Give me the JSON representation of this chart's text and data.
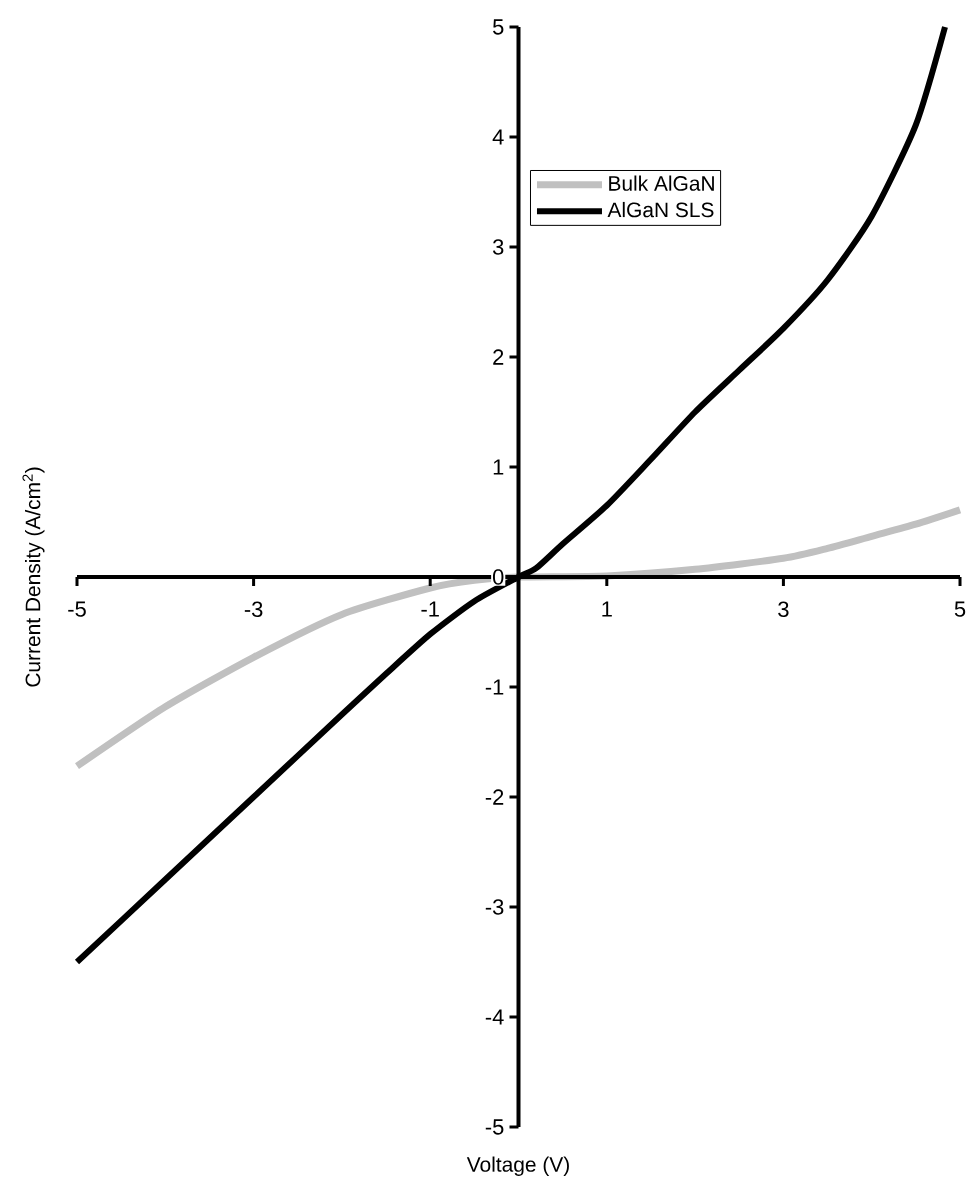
{
  "chart_data": {
    "type": "line",
    "xlabel": "Voltage (V)",
    "ylabel": "Current Density (A/cm$^{2}$)",
    "xlim": [
      -5,
      5
    ],
    "ylim": [
      -5,
      5
    ],
    "xticks": [
      -5,
      -3,
      -1,
      1,
      3,
      5
    ],
    "yticks": [
      -5,
      -4,
      -3,
      -2,
      -1,
      0,
      1,
      2,
      3,
      4,
      5
    ],
    "legend": "top",
    "series": [
      {
        "name": "Bulk AlGaN",
        "color": "#c0c0c0",
        "x": [
          -5,
          -4,
          -3,
          -2,
          -1,
          -0.5,
          0,
          1,
          2,
          3,
          3.5,
          4,
          4.5,
          5
        ],
        "values": [
          -1.72,
          -1.18,
          -0.73,
          -0.34,
          -0.1,
          -0.03,
          0,
          0.01,
          0.07,
          0.17,
          0.26,
          0.37,
          0.48,
          0.61
        ]
      },
      {
        "name": "AlGaN SLS",
        "color": "#000000",
        "x": [
          -5,
          -4,
          -3,
          -2,
          -1.5,
          -1,
          -0.5,
          0,
          0.2,
          0.5,
          1,
          1.5,
          2,
          2.5,
          3,
          3.5,
          4,
          4.5,
          4.83
        ],
        "values": [
          -3.5,
          -2.75,
          -2.0,
          -1.25,
          -0.88,
          -0.52,
          -0.22,
          0,
          0.08,
          0.3,
          0.65,
          1.07,
          1.5,
          1.88,
          2.26,
          2.7,
          3.28,
          4.11,
          5.0
        ]
      }
    ]
  }
}
